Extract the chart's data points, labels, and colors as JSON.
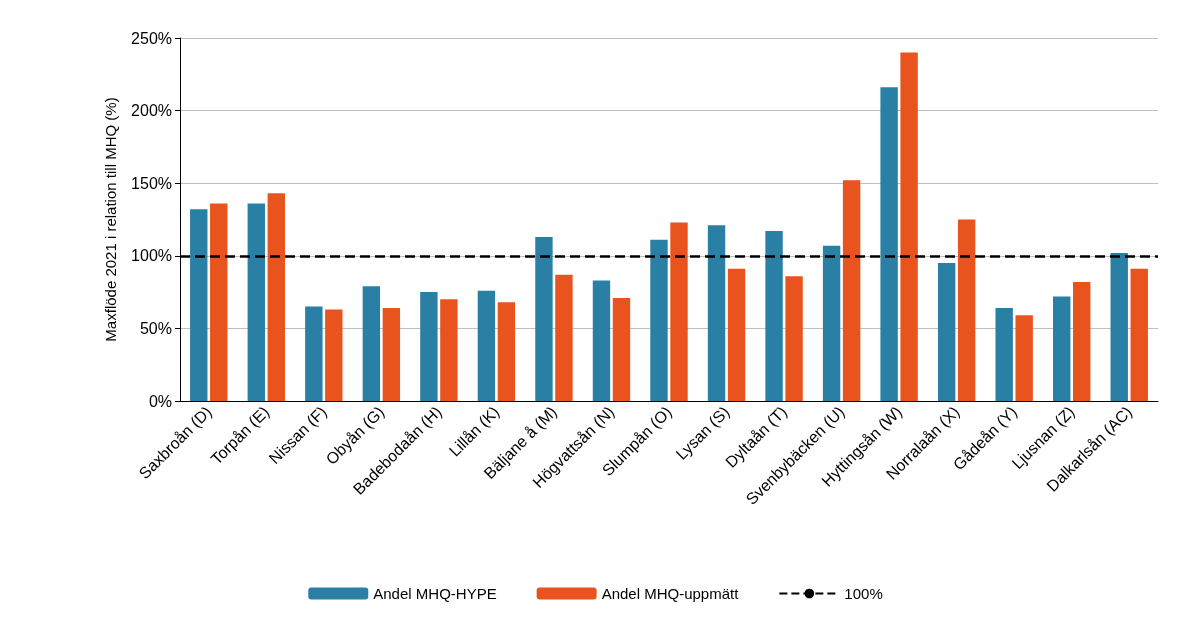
{
  "chart_data": {
    "type": "bar",
    "ylabel": "Maxflöde 2021 i relation till MHQ (%)",
    "categories": [
      "Saxbroån (D)",
      "Torpån (E)",
      "Nissan (F)",
      "Obyån (G)",
      "Badebodaån (H)",
      "Lillån (K)",
      "Bäljane å (M)",
      "Högvattsån (N)",
      "Slumpån (O)",
      "Lysan (S)",
      "Dyltaån (T)",
      "Svenbybäcken (U)",
      "Hyttingsån (W)",
      "Norralaån (X)",
      "Gådeån (Y)",
      "Ljusnan (Z)",
      "Dalkarlsån (AC)"
    ],
    "series": [
      {
        "name": "Andel MHQ-HYPE",
        "color": "#2a7fa5",
        "values": [
          132,
          136,
          65,
          79,
          75,
          76,
          113,
          83,
          111,
          121,
          117,
          107,
          216,
          95,
          64,
          72,
          102
        ]
      },
      {
        "name": "Andel MHQ-uppmätt",
        "color": "#e9531d",
        "values": [
          136,
          143,
          63,
          64,
          70,
          68,
          87,
          71,
          123,
          91,
          86,
          152,
          240,
          125,
          59,
          82,
          91
        ]
      }
    ],
    "ylim": [
      0,
      250
    ],
    "yticks": [
      {
        "value": 0,
        "label": "0%"
      },
      {
        "value": 50,
        "label": "50%"
      },
      {
        "value": 100,
        "label": "100%"
      },
      {
        "value": 150,
        "label": "150%"
      },
      {
        "value": 200,
        "label": "200%"
      },
      {
        "value": 250,
        "label": "250%"
      }
    ],
    "ref_lines": [
      {
        "axis": "y",
        "value": 100,
        "label": "100%",
        "color": "#000000",
        "line_style": "dashed"
      }
    ],
    "grid": "y",
    "legend": "bottom"
  }
}
